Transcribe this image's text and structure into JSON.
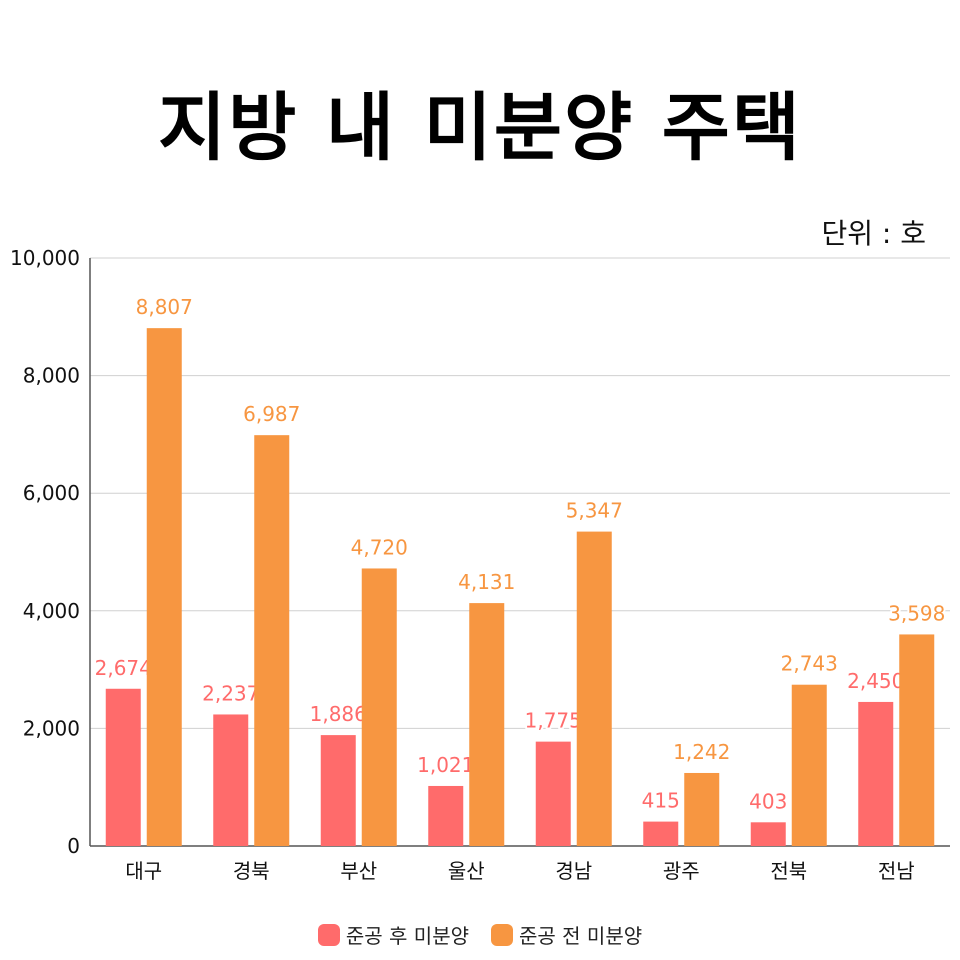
{
  "chart_data": {
    "type": "bar",
    "title": "지방 내 미분양 주택",
    "unit_label": "단위 : 호",
    "categories": [
      "대구",
      "경북",
      "부산",
      "울산",
      "경남",
      "광주",
      "전북",
      "전남"
    ],
    "series": [
      {
        "name": "준공 후 미분양",
        "color": "#ff6b6b",
        "values": [
          2674,
          2237,
          1886,
          1021,
          1775,
          415,
          403,
          2450
        ]
      },
      {
        "name": "준공 전 미분양",
        "color": "#f79641",
        "values": [
          8807,
          6987,
          4720,
          4131,
          5347,
          1242,
          2743,
          3598
        ]
      }
    ],
    "ylim": [
      0,
      10000
    ],
    "yticks": [
      0,
      2000,
      4000,
      6000,
      8000,
      10000
    ],
    "ytick_labels": [
      "0",
      "2,000",
      "4,000",
      "6,000",
      "8,000",
      "10,000"
    ],
    "grid": true,
    "legend": "bottom"
  }
}
